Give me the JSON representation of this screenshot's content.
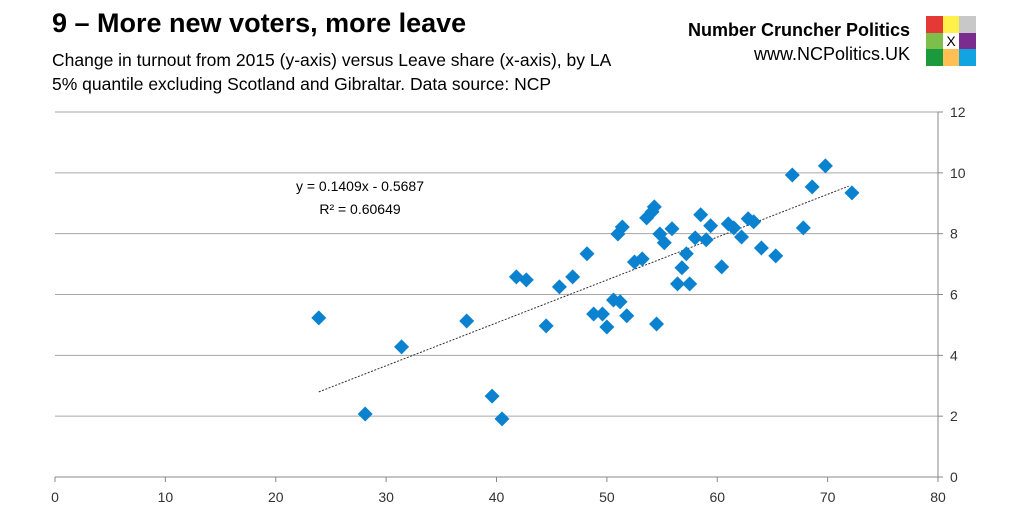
{
  "header": {
    "title": "9 – More new voters, more leave",
    "subtitle_line1": "Change in turnout from 2015 (y-axis) versus Leave share (x-axis), by LA",
    "subtitle_line2": "5% quantile excluding Scotland and Gibraltar. Data source: NCP"
  },
  "brand": {
    "name": "Number Cruncher Politics",
    "url": "www.NCPolitics.UK",
    "logo_colors": [
      "#e53935",
      "#fff04a",
      "#c8c8c8",
      "#7cbf4a",
      "#ffffff",
      "#7b2c8f",
      "#1a9a3c",
      "#ffbf52",
      "#12a4e0"
    ],
    "logo_mark": "X"
  },
  "chart_data": {
    "type": "scatter",
    "xlim": [
      0,
      80
    ],
    "ylim": [
      0,
      12
    ],
    "xticks": [
      0,
      10,
      20,
      30,
      40,
      50,
      60,
      70,
      80
    ],
    "yticks": [
      0,
      2,
      4,
      6,
      8,
      10,
      12
    ],
    "y_axis_side": "right",
    "grid": "horizontal",
    "marker_color": "#0a82d0",
    "marker": "diamond",
    "trendline": {
      "slope": 0.1409,
      "intercept": -0.5687,
      "x_range": [
        23.9,
        71.9
      ],
      "style": "dotted",
      "equation": "y = 0.1409x - 0.5687",
      "r2": "R² = 0.60649"
    },
    "points": [
      [
        23.9,
        5.23
      ],
      [
        28.1,
        2.07
      ],
      [
        31.4,
        4.28
      ],
      [
        37.3,
        5.13
      ],
      [
        39.6,
        2.66
      ],
      [
        40.5,
        1.91
      ],
      [
        41.8,
        6.58
      ],
      [
        42.7,
        6.48
      ],
      [
        44.5,
        4.97
      ],
      [
        45.7,
        6.25
      ],
      [
        46.9,
        6.58
      ],
      [
        48.2,
        7.34
      ],
      [
        48.8,
        5.36
      ],
      [
        49.6,
        5.36
      ],
      [
        50.0,
        4.93
      ],
      [
        50.6,
        5.82
      ],
      [
        51.2,
        5.76
      ],
      [
        51.0,
        7.99
      ],
      [
        51.4,
        8.22
      ],
      [
        51.8,
        5.3
      ],
      [
        52.5,
        7.07
      ],
      [
        53.2,
        7.17
      ],
      [
        53.6,
        8.52
      ],
      [
        54.1,
        8.72
      ],
      [
        54.3,
        8.88
      ],
      [
        54.5,
        5.03
      ],
      [
        54.8,
        7.99
      ],
      [
        55.2,
        7.7
      ],
      [
        55.9,
        8.16
      ],
      [
        56.4,
        6.35
      ],
      [
        56.8,
        6.88
      ],
      [
        57.2,
        7.34
      ],
      [
        57.5,
        6.35
      ],
      [
        58.0,
        7.86
      ],
      [
        58.5,
        8.62
      ],
      [
        59.0,
        7.8
      ],
      [
        59.4,
        8.26
      ],
      [
        60.4,
        6.91
      ],
      [
        61.0,
        8.32
      ],
      [
        61.5,
        8.19
      ],
      [
        62.2,
        7.89
      ],
      [
        62.8,
        8.49
      ],
      [
        63.3,
        8.39
      ],
      [
        64.0,
        7.53
      ],
      [
        65.3,
        7.27
      ],
      [
        66.8,
        9.93
      ],
      [
        67.8,
        8.19
      ],
      [
        68.6,
        9.54
      ],
      [
        69.8,
        10.23
      ],
      [
        72.2,
        9.34
      ]
    ]
  }
}
